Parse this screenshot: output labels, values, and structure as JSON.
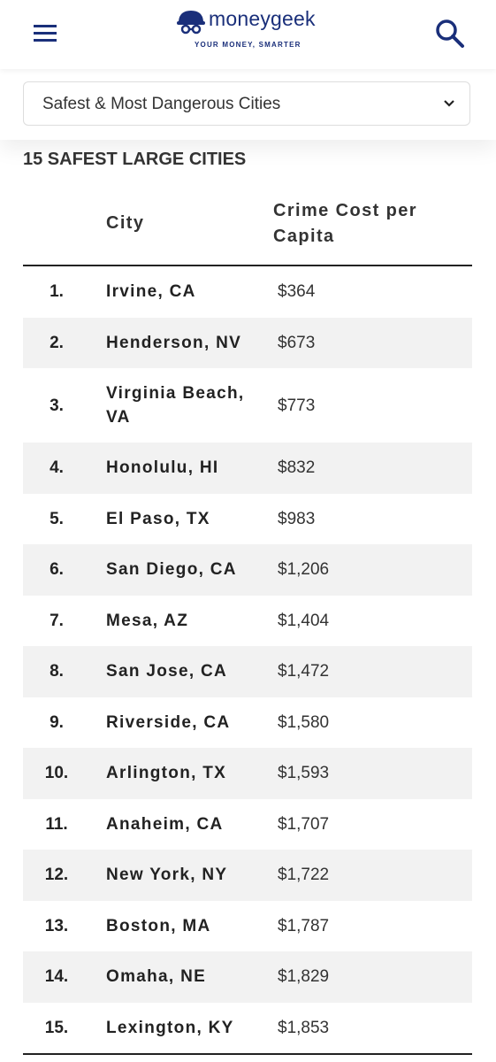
{
  "header": {
    "logo": "moneygeek",
    "tagline": "YOUR MONEY, SMARTER"
  },
  "dropdown": {
    "label": "Safest & Most Dangerous Cities"
  },
  "section": {
    "title": "15 SAFEST LARGE CITIES"
  },
  "table": {
    "columns": [
      "City",
      "Crime Cost per Capita"
    ],
    "rows": [
      [
        "1.",
        "Irvine, CA",
        "$364"
      ],
      [
        "2.",
        "Henderson, NV",
        "$673"
      ],
      [
        "3.",
        "Virginia Beach, VA",
        "$773"
      ],
      [
        "4.",
        "Honolulu, HI",
        "$832"
      ],
      [
        "5.",
        "El Paso, TX",
        "$983"
      ],
      [
        "6.",
        "San Diego, CA",
        "$1,206"
      ],
      [
        "7.",
        "Mesa, AZ",
        "$1,404"
      ],
      [
        "8.",
        "San Jose, CA",
        "$1,472"
      ],
      [
        "9.",
        "Riverside, CA",
        "$1,580"
      ],
      [
        "10.",
        "Arlington, TX",
        "$1,593"
      ],
      [
        "11.",
        "Anaheim, CA",
        "$1,707"
      ],
      [
        "12.",
        "New York, NY",
        "$1,722"
      ],
      [
        "13.",
        "Boston, MA",
        "$1,787"
      ],
      [
        "14.",
        "Omaha, NE",
        "$1,829"
      ],
      [
        "15.",
        "Lexington, KY",
        "$1,853"
      ]
    ]
  }
}
